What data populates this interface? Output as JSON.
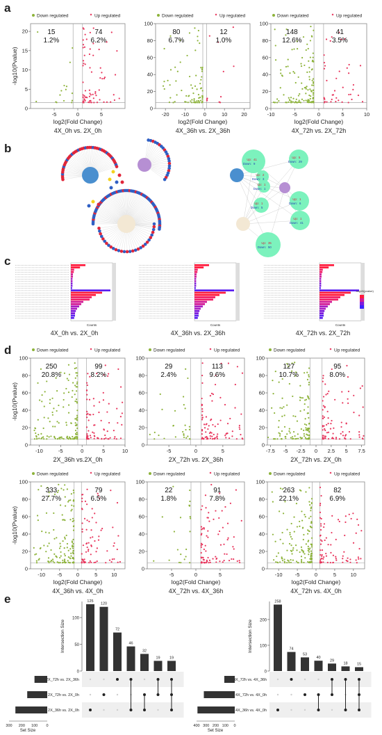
{
  "panels": {
    "a": "a",
    "b": "b",
    "c": "c",
    "d": "d",
    "e": "e"
  },
  "volcano_common": {
    "legend_down": "Down regulated",
    "legend_up": "Up regulated",
    "xlabel": "log2(Fold Change)",
    "ylabel": "-log10(Pvalue)",
    "down_color": "#8db33a",
    "up_color": "#e8365d"
  },
  "chart_data": [
    {
      "id": "a1",
      "type": "scatter",
      "title": "4X_0h vs. 2X_0h",
      "xlim": [
        -10,
        10
      ],
      "ylim": [
        0,
        22
      ],
      "xticks": [
        -5,
        0,
        5
      ],
      "yticks": [
        0,
        5,
        10,
        15,
        20
      ],
      "down": {
        "count": "15",
        "pct": "1.2%"
      },
      "up": {
        "count": "74",
        "pct": "6.2%"
      }
    },
    {
      "id": "a2",
      "type": "scatter",
      "title": "4X_36h vs. 2X_36h",
      "xlim": [
        -25,
        23
      ],
      "ylim": [
        0,
        100
      ],
      "xticks": [
        -20,
        -10,
        0,
        10,
        20
      ],
      "yticks": [
        0,
        20,
        40,
        60,
        80,
        100
      ],
      "down": {
        "count": "80",
        "pct": "6.7%"
      },
      "up": {
        "count": "12",
        "pct": "1.0%"
      }
    },
    {
      "id": "a3",
      "type": "scatter",
      "title": "4X_72h vs. 2X_72h",
      "xlim": [
        -10,
        10
      ],
      "ylim": [
        0,
        100
      ],
      "xticks": [
        -10,
        -5,
        0,
        5,
        10
      ],
      "yticks": [
        0,
        20,
        40,
        60,
        80,
        100
      ],
      "down": {
        "count": "148",
        "pct": "12.6%"
      },
      "up": {
        "count": "41",
        "pct": "3.5%"
      }
    },
    {
      "id": "d1",
      "type": "scatter",
      "title": "2X_36h vs.2X_0h",
      "xlim": [
        -12,
        10
      ],
      "ylim": [
        0,
        100
      ],
      "xticks": [
        -10,
        -5,
        0,
        5,
        10
      ],
      "yticks": [
        0,
        20,
        40,
        60,
        80,
        100
      ],
      "down": {
        "count": "250",
        "pct": "20.8%"
      },
      "up": {
        "count": "99",
        "pct": "8.2%"
      }
    },
    {
      "id": "d2",
      "type": "scatter",
      "title": "2X_72h vs. 2X_36h",
      "xlim": [
        -9,
        9
      ],
      "ylim": [
        0,
        100
      ],
      "xticks": [
        -5,
        0,
        5
      ],
      "yticks": [
        0,
        20,
        40,
        60,
        80,
        100
      ],
      "down": {
        "count": "29",
        "pct": "2.4%"
      },
      "up": {
        "count": "113",
        "pct": "9.6%"
      }
    },
    {
      "id": "d3",
      "type": "scatter",
      "title": "2X_72h vs. 2X_0h",
      "xlim": [
        -8,
        8
      ],
      "ylim": [
        0,
        100
      ],
      "xticks": [
        -7.5,
        -5,
        -2.5,
        0,
        2.5,
        5,
        7.5
      ],
      "yticks": [
        0,
        20,
        40,
        60,
        80,
        100
      ],
      "down": {
        "count": "127",
        "pct": "10.7%"
      },
      "up": {
        "count": "95",
        "pct": "8.0%"
      }
    },
    {
      "id": "d4",
      "type": "scatter",
      "title": "4X_36h vs. 4X_0h",
      "xlim": [
        -13,
        13
      ],
      "ylim": [
        0,
        100
      ],
      "xticks": [
        -10,
        -5,
        0,
        5,
        10
      ],
      "yticks": [
        0,
        20,
        40,
        60,
        80,
        100
      ],
      "down": {
        "count": "333",
        "pct": "27.7%"
      },
      "up": {
        "count": "79",
        "pct": "6.5%"
      }
    },
    {
      "id": "d5",
      "type": "scatter",
      "title": "4X_72h vs. 4X_36h",
      "xlim": [
        -10,
        10
      ],
      "ylim": [
        0,
        100
      ],
      "xticks": [
        -5,
        0,
        5
      ],
      "yticks": [
        0,
        20,
        40,
        60,
        80,
        100
      ],
      "down": {
        "count": "22",
        "pct": "1.8%"
      },
      "up": {
        "count": "91",
        "pct": "7.8%"
      }
    },
    {
      "id": "d6",
      "type": "scatter",
      "title": "4X_72h vs. 4X_0h",
      "xlim": [
        -13,
        13
      ],
      "ylim": [
        0,
        100
      ],
      "xticks": [
        -10,
        -5,
        0,
        5,
        10
      ],
      "yticks": [
        0,
        20,
        40,
        60,
        80,
        100
      ],
      "down": {
        "count": "263",
        "pct": "22.1%"
      },
      "up": {
        "count": "82",
        "pct": "6.9%"
      }
    },
    {
      "id": "e1",
      "type": "bar",
      "ylabel": "Intersection Size",
      "set_size_label": "Set Size",
      "values": [
        125,
        120,
        72,
        46,
        32,
        19,
        19
      ],
      "ylim": [
        0,
        130
      ],
      "yticks": [
        0,
        50,
        100
      ],
      "sets": [
        "2X_72h vs. 2X_36h",
        "2X_72h vs. 2X_0h",
        "2X_36h vs. 2X_0h"
      ],
      "set_sizes": [
        140,
        220,
        350
      ],
      "set_xticks": [
        "300",
        "200",
        "100",
        "0"
      ],
      "matrix": [
        [
          2
        ],
        [
          1
        ],
        [
          0
        ],
        [
          0,
          2
        ],
        [
          1,
          2
        ],
        [
          0,
          1
        ],
        [
          0,
          1,
          2
        ]
      ]
    },
    {
      "id": "e2",
      "type": "bar",
      "ylabel": "Intersection Size",
      "set_size_label": "Set Size",
      "values": [
        258,
        74,
        53,
        40,
        29,
        18,
        15
      ],
      "ylim": [
        0,
        270
      ],
      "yticks": [
        0,
        100,
        200
      ],
      "sets": [
        "4X_72h vs. 4X_36h",
        "4X_72h vs. 4X_0h",
        "4X_36h vs. 4X_0h"
      ],
      "set_sizes": [
        115,
        340,
        410
      ],
      "set_xticks": [
        "400",
        "300",
        "200",
        "100",
        "0"
      ],
      "matrix": [
        [
          2
        ],
        [
          0
        ],
        [
          1
        ],
        [
          1,
          2
        ],
        [
          0,
          1
        ],
        [
          0,
          2
        ],
        [
          0,
          1,
          2
        ]
      ]
    }
  ],
  "enrichment": {
    "titles": [
      "4X_0h vs. 2X_0h",
      "4X_36h vs. 2X_36h",
      "4X_72h vs. 2X_72h"
    ],
    "axis": "Counts",
    "legend_title": "-log10(pvalue)"
  },
  "network_right": {
    "up_label": "Up:",
    "down_label": "Down:",
    "nodes": [
      {
        "up": "41",
        "down": "9"
      },
      {
        "up": "5",
        "down": "29"
      },
      {
        "up": "1",
        "down": "1"
      },
      {
        "up": "1",
        "down": "5"
      },
      {
        "up": "2",
        "down": "3"
      },
      {
        "up": "1",
        "down": "6"
      },
      {
        "up": "1",
        "down": "41"
      },
      {
        "up": "35",
        "down": "50"
      }
    ]
  }
}
